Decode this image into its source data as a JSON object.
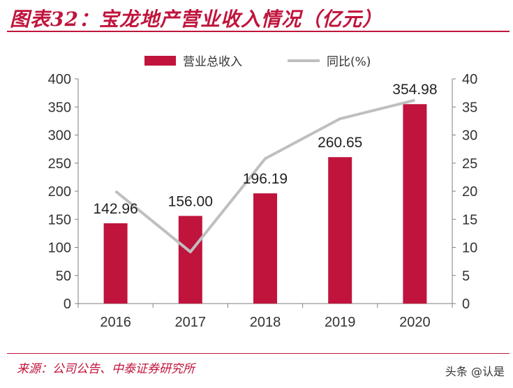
{
  "title": "图表32：宝龙地产营业收入情况（亿元）",
  "source": "来源：公司公告、中泰证券研究所",
  "watermark": "头条 @认是",
  "colors": {
    "accent": "#c0143c",
    "bar": "#c0143c",
    "line": "#bfbfbf"
  },
  "chart_data": {
    "type": "bar",
    "categories": [
      "2016",
      "2017",
      "2018",
      "2019",
      "2020"
    ],
    "series": [
      {
        "name": "营业总收入",
        "type": "bar",
        "axis": "left",
        "values": [
          142.96,
          156.0,
          196.19,
          260.65,
          354.98
        ]
      },
      {
        "name": "同比(%)",
        "type": "line",
        "axis": "right",
        "values": [
          20.0,
          9.2,
          25.8,
          32.9,
          36.2
        ]
      }
    ],
    "data_labels": [
      "142.96",
      "156.00",
      "196.19",
      "260.65",
      "354.98"
    ],
    "y_left": {
      "min": 0,
      "max": 400,
      "ticks": [
        "0",
        "50",
        "100",
        "150",
        "200",
        "250",
        "300",
        "350",
        "400"
      ]
    },
    "y_right": {
      "min": 0,
      "max": 40,
      "ticks": [
        "0",
        "5",
        "10",
        "15",
        "20",
        "25",
        "30",
        "35",
        "40"
      ]
    },
    "legend": "top-center",
    "grid": false
  }
}
